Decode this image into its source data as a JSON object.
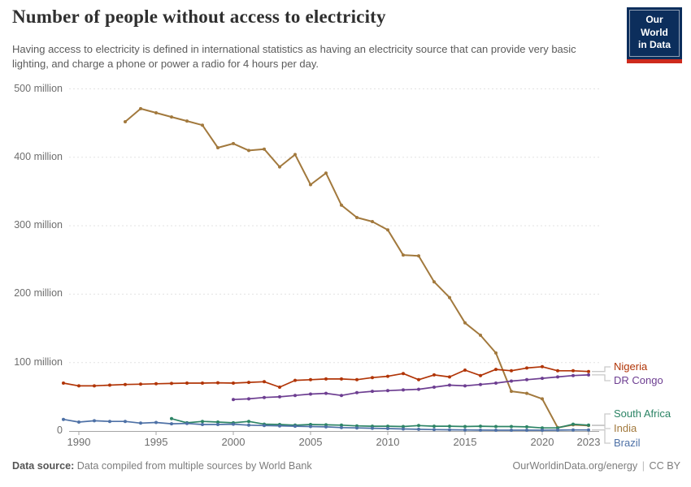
{
  "header": {
    "title": "Number of people without access to electricity",
    "subtitle": "Having access to electricity is defined in international statistics as having an electricity source that can provide very basic lighting, and charge a phone or power a radio for 4 hours per day.",
    "logo": {
      "line1": "Our World",
      "line2": "in Data",
      "bg_color": "#0C2E5C",
      "stripe_color": "#CE2A1D"
    }
  },
  "chart_data": {
    "type": "line",
    "title": "Number of people without access to electricity",
    "unit": "people (millions)",
    "x_range": [
      1989,
      2023
    ],
    "y_range": [
      0,
      500
    ],
    "grid": true,
    "legend_position": "end-of-line-labels-right",
    "grid_color": "#e2e2e2",
    "axis_color": "#a5a5a5",
    "connector_color": "#c9c9c9",
    "x_ticks": [
      1990,
      1995,
      2000,
      2005,
      2010,
      2015,
      2020,
      2023
    ],
    "y_ticks": [
      {
        "value": 0,
        "label": "0"
      },
      {
        "value": 100,
        "label": "100 million"
      },
      {
        "value": 200,
        "label": "200 million"
      },
      {
        "value": 300,
        "label": "300 million"
      },
      {
        "value": 400,
        "label": "400 million"
      },
      {
        "value": 500,
        "label": "500 million"
      }
    ],
    "series": [
      {
        "name": "India",
        "color": "#A2793D",
        "points": [
          [
            1993,
            452
          ],
          [
            1994,
            471
          ],
          [
            1995,
            465
          ],
          [
            1996,
            459
          ],
          [
            1997,
            453
          ],
          [
            1998,
            447
          ],
          [
            1999,
            414
          ],
          [
            2000,
            420
          ],
          [
            2001,
            410
          ],
          [
            2002,
            412
          ],
          [
            2003,
            386
          ],
          [
            2004,
            404
          ],
          [
            2005,
            360
          ],
          [
            2006,
            377
          ],
          [
            2007,
            330
          ],
          [
            2008,
            312
          ],
          [
            2009,
            306
          ],
          [
            2010,
            294
          ],
          [
            2011,
            257
          ],
          [
            2012,
            256
          ],
          [
            2013,
            218
          ],
          [
            2014,
            195
          ],
          [
            2015,
            158
          ],
          [
            2016,
            140
          ],
          [
            2017,
            114
          ],
          [
            2018,
            58
          ],
          [
            2019,
            55
          ],
          [
            2020,
            47
          ],
          [
            2021,
            5
          ],
          [
            2022,
            9
          ],
          [
            2023,
            8
          ]
        ]
      },
      {
        "name": "Nigeria",
        "color": "#B13507",
        "points": [
          [
            1989,
            70
          ],
          [
            1990,
            66
          ],
          [
            1991,
            66
          ],
          [
            1992,
            67
          ],
          [
            1993,
            68
          ],
          [
            1994,
            68.5
          ],
          [
            1995,
            69
          ],
          [
            1996,
            69.5
          ],
          [
            1997,
            70
          ],
          [
            1998,
            70
          ],
          [
            1999,
            70.5
          ],
          [
            2000,
            70
          ],
          [
            2001,
            71
          ],
          [
            2002,
            72
          ],
          [
            2003,
            64
          ],
          [
            2004,
            74
          ],
          [
            2005,
            75
          ],
          [
            2006,
            76
          ],
          [
            2007,
            76
          ],
          [
            2008,
            75
          ],
          [
            2009,
            78
          ],
          [
            2010,
            80
          ],
          [
            2011,
            84
          ],
          [
            2012,
            75
          ],
          [
            2013,
            82
          ],
          [
            2014,
            79
          ],
          [
            2015,
            89
          ],
          [
            2016,
            81
          ],
          [
            2017,
            90
          ],
          [
            2018,
            88
          ],
          [
            2019,
            92
          ],
          [
            2020,
            94
          ],
          [
            2021,
            88
          ],
          [
            2022,
            88
          ],
          [
            2023,
            87
          ]
        ]
      },
      {
        "name": "DR Congo",
        "color": "#6D3E91",
        "points": [
          [
            2000,
            46
          ],
          [
            2001,
            47
          ],
          [
            2002,
            49
          ],
          [
            2003,
            50
          ],
          [
            2004,
            52
          ],
          [
            2005,
            54
          ],
          [
            2006,
            55
          ],
          [
            2007,
            52
          ],
          [
            2008,
            56
          ],
          [
            2009,
            58
          ],
          [
            2010,
            59
          ],
          [
            2011,
            60
          ],
          [
            2012,
            61
          ],
          [
            2013,
            64
          ],
          [
            2014,
            67
          ],
          [
            2015,
            66
          ],
          [
            2016,
            68
          ],
          [
            2017,
            70
          ],
          [
            2018,
            73
          ],
          [
            2019,
            75
          ],
          [
            2020,
            77
          ],
          [
            2021,
            79
          ],
          [
            2022,
            81
          ],
          [
            2023,
            82
          ]
        ]
      },
      {
        "name": "South Africa",
        "color": "#2C8465",
        "points": [
          [
            1996,
            18
          ],
          [
            1997,
            12
          ],
          [
            1998,
            14
          ],
          [
            1999,
            13
          ],
          [
            2000,
            12
          ],
          [
            2001,
            14
          ],
          [
            2002,
            10
          ],
          [
            2003,
            9.5
          ],
          [
            2004,
            8.5
          ],
          [
            2005,
            9.5
          ],
          [
            2006,
            9
          ],
          [
            2007,
            8.5
          ],
          [
            2008,
            7.5
          ],
          [
            2009,
            7
          ],
          [
            2010,
            7
          ],
          [
            2011,
            6.5
          ],
          [
            2012,
            8
          ],
          [
            2013,
            7
          ],
          [
            2014,
            7
          ],
          [
            2015,
            6.5
          ],
          [
            2016,
            7
          ],
          [
            2017,
            6.5
          ],
          [
            2018,
            6.5
          ],
          [
            2019,
            6
          ],
          [
            2020,
            4.5
          ],
          [
            2021,
            4.5
          ],
          [
            2022,
            10
          ],
          [
            2023,
            8.5
          ]
        ]
      },
      {
        "name": "Brazil",
        "color": "#4E71A6",
        "points": [
          [
            1989,
            17
          ],
          [
            1990,
            13
          ],
          [
            1991,
            15
          ],
          [
            1992,
            14
          ],
          [
            1993,
            14
          ],
          [
            1994,
            11.5
          ],
          [
            1995,
            12.5
          ],
          [
            1996,
            10.5
          ],
          [
            1997,
            11
          ],
          [
            1998,
            9.5
          ],
          [
            1999,
            9.5
          ],
          [
            2000,
            10
          ],
          [
            2001,
            8.5
          ],
          [
            2002,
            8
          ],
          [
            2003,
            7.5
          ],
          [
            2004,
            7
          ],
          [
            2005,
            6.5
          ],
          [
            2006,
            6
          ],
          [
            2007,
            5
          ],
          [
            2008,
            4.5
          ],
          [
            2009,
            4
          ],
          [
            2010,
            3.5
          ],
          [
            2011,
            3
          ],
          [
            2012,
            2.5
          ],
          [
            2013,
            2
          ],
          [
            2014,
            1.8
          ],
          [
            2015,
            1.5
          ],
          [
            2016,
            1.3
          ],
          [
            2017,
            1.2
          ],
          [
            2018,
            1.2
          ],
          [
            2019,
            1.2
          ],
          [
            2020,
            1.2
          ],
          [
            2021,
            1.3
          ],
          [
            2022,
            1.5
          ],
          [
            2023,
            1.5
          ]
        ]
      }
    ]
  },
  "footer": {
    "source_label": "Data source:",
    "source_text": "Data compiled from multiple sources by World Bank",
    "url": "OurWorldinData.org/energy",
    "sep": "|",
    "license": "CC BY"
  }
}
